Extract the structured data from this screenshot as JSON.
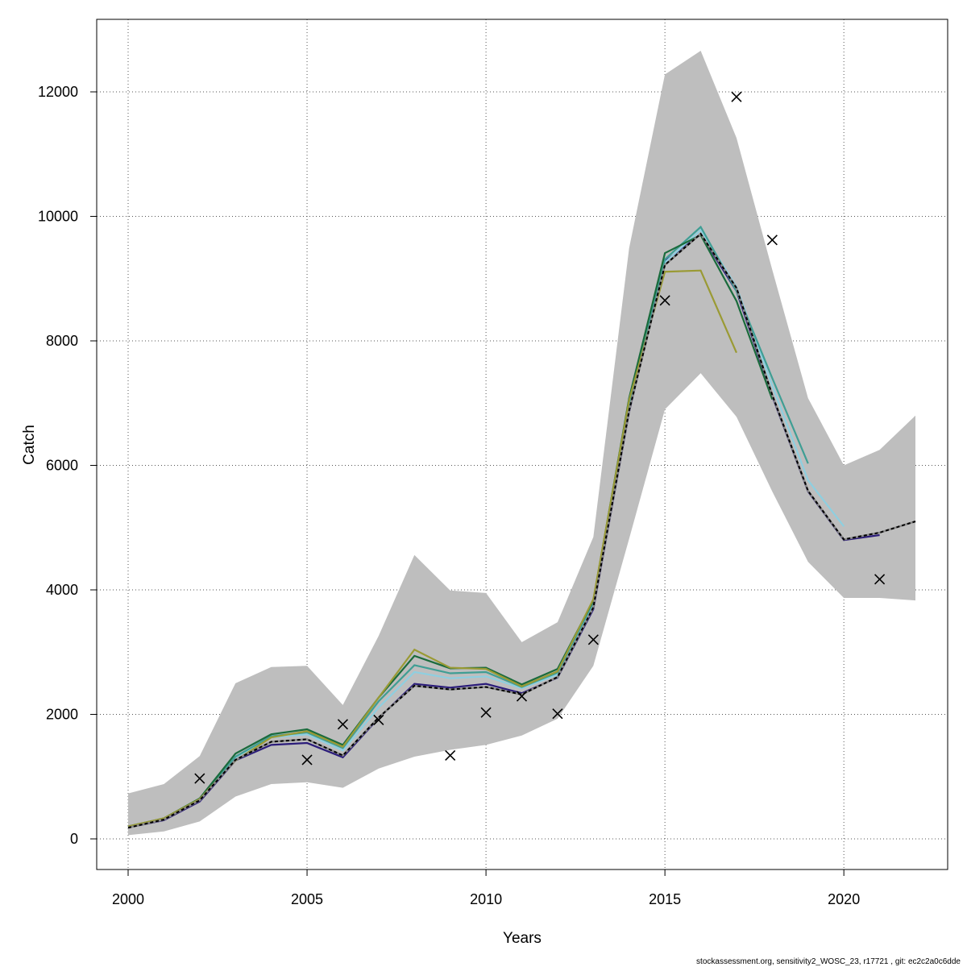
{
  "chart_data": {
    "type": "line",
    "xlabel": "Years",
    "ylabel": "Catch",
    "xlim": [
      2000,
      2022
    ],
    "ylim": [
      0,
      12500
    ],
    "x_ticks": [
      2000,
      2005,
      2010,
      2015,
      2020
    ],
    "y_ticks": [
      0,
      2000,
      4000,
      6000,
      8000,
      10000,
      12000
    ],
    "x_tick_labels": [
      "2000",
      "2005",
      "2010",
      "2015",
      "2020"
    ],
    "y_tick_labels": [
      "0",
      "2000",
      "4000",
      "6000",
      "8000",
      "10000",
      "12000"
    ],
    "grid": true,
    "confidence_band": {
      "color": "#bebebe",
      "x": [
        2000,
        2001,
        2002,
        2003,
        2004,
        2005,
        2006,
        2007,
        2008,
        2009,
        2010,
        2011,
        2012,
        2013,
        2014,
        2015,
        2016,
        2017,
        2018,
        2019,
        2020,
        2021,
        2022
      ],
      "lower": [
        60,
        120,
        280,
        680,
        880,
        910,
        820,
        1130,
        1320,
        1430,
        1510,
        1660,
        1930,
        2780,
        4820,
        6900,
        7480,
        6780,
        5580,
        4450,
        3870,
        3870,
        3830
      ],
      "upper": [
        730,
        880,
        1330,
        2500,
        2760,
        2780,
        2150,
        3260,
        4560,
        3990,
        3950,
        3160,
        3480,
        4850,
        9490,
        12280,
        12660,
        11260,
        9140,
        7080,
        6000,
        6250,
        6800
      ]
    },
    "series": [
      {
        "color": "#000000",
        "style": "dashed",
        "x": [
          2000,
          2001,
          2002,
          2003,
          2004,
          2005,
          2006,
          2007,
          2008,
          2009,
          2010,
          2011,
          2012,
          2013,
          2014,
          2015,
          2016,
          2017,
          2018,
          2019,
          2020,
          2021,
          2022
        ],
        "values": [
          180,
          310,
          620,
          1270,
          1560,
          1600,
          1340,
          1950,
          2460,
          2400,
          2440,
          2320,
          2600,
          3720,
          6880,
          9220,
          9720,
          8850,
          7130,
          5590,
          4810,
          4920,
          5100
        ]
      },
      {
        "color": "#2b1c7a",
        "style": "solid",
        "x": [
          2000,
          2001,
          2002,
          2003,
          2004,
          2005,
          2006,
          2007,
          2008,
          2009,
          2010,
          2011,
          2012,
          2013,
          2014,
          2015,
          2016,
          2017,
          2018,
          2019,
          2020,
          2021
        ],
        "values": [
          180,
          300,
          600,
          1260,
          1510,
          1540,
          1310,
          1940,
          2490,
          2430,
          2490,
          2340,
          2590,
          3690,
          6860,
          9280,
          9710,
          8800,
          7110,
          5580,
          4800,
          4880
        ]
      },
      {
        "color": "#8ecfe0",
        "style": "solid",
        "x": [
          2000,
          2001,
          2002,
          2003,
          2004,
          2005,
          2006,
          2007,
          2008,
          2009,
          2010,
          2011,
          2012,
          2013,
          2014,
          2015,
          2016,
          2017,
          2018,
          2019,
          2020
        ],
        "values": [
          190,
          320,
          620,
          1310,
          1630,
          1680,
          1420,
          2110,
          2680,
          2580,
          2610,
          2420,
          2640,
          3780,
          6940,
          9260,
          9780,
          8870,
          7280,
          5760,
          5020
        ]
      },
      {
        "color": "#3f9e94",
        "style": "solid",
        "x": [
          2000,
          2001,
          2002,
          2003,
          2004,
          2005,
          2006,
          2007,
          2008,
          2009,
          2010,
          2011,
          2012,
          2013,
          2014,
          2015,
          2016,
          2017,
          2018,
          2019
        ],
        "values": [
          190,
          320,
          630,
          1320,
          1650,
          1710,
          1460,
          2210,
          2790,
          2660,
          2680,
          2440,
          2670,
          3800,
          7000,
          9310,
          9830,
          8800,
          7400,
          6030
        ]
      },
      {
        "color": "#1a6b3c",
        "style": "solid",
        "x": [
          2000,
          2001,
          2002,
          2003,
          2004,
          2005,
          2006,
          2007,
          2008,
          2009,
          2010,
          2011,
          2012,
          2013,
          2014,
          2015,
          2016,
          2017,
          2018
        ],
        "values": [
          200,
          330,
          650,
          1370,
          1680,
          1760,
          1510,
          2270,
          2940,
          2740,
          2750,
          2480,
          2730,
          3830,
          7080,
          9410,
          9700,
          8640,
          7060
        ]
      },
      {
        "color": "#9a9a34",
        "style": "solid",
        "x": [
          2000,
          2001,
          2002,
          2003,
          2004,
          2005,
          2006,
          2007,
          2008,
          2009,
          2010,
          2011,
          2012,
          2013,
          2014,
          2015,
          2016,
          2017
        ],
        "values": [
          200,
          330,
          640,
          1260,
          1630,
          1730,
          1480,
          2270,
          3040,
          2750,
          2730,
          2450,
          2690,
          3850,
          7050,
          9110,
          9130,
          7810
        ]
      }
    ],
    "observed": {
      "marker": "x",
      "x": [
        2002,
        2005,
        2006,
        2007,
        2009,
        2010,
        2011,
        2012,
        2013,
        2015,
        2017,
        2018,
        2021
      ],
      "values": [
        970,
        1270,
        1840,
        1910,
        1340,
        2030,
        2290,
        2010,
        3200,
        8650,
        11920,
        9620,
        4170
      ]
    }
  },
  "footer_text": "stockassessment.org, sensitivity2_WOSC_23, r17721 , git: ec2c2a0c6dde"
}
